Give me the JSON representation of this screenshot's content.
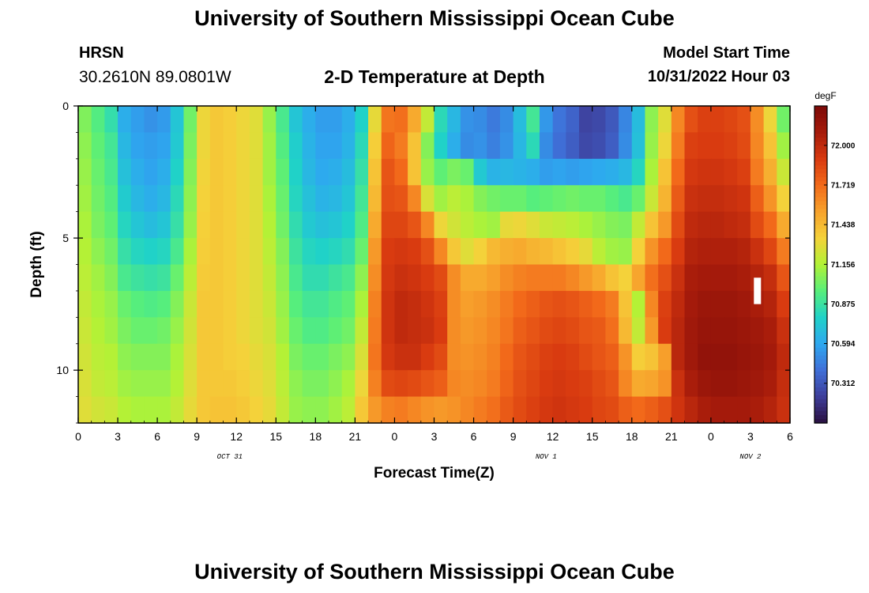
{
  "header": {
    "title": "University of Southern Mississippi Ocean Cube",
    "station": "HRSN",
    "coords": "30.2610N  89.0801W",
    "subtitle": "2-D Temperature at Depth",
    "start_label": "Model Start Time",
    "start_value": "10/31/2022 Hour 03"
  },
  "footer": {
    "title": "University of Southern Mississippi Ocean Cube"
  },
  "colors": {
    "ramp": [
      "#2a0f40",
      "#3e3e9a",
      "#3f6fd8",
      "#2ea8f0",
      "#20d2c8",
      "#58ef7a",
      "#b2f236",
      "#f5d23a",
      "#f7a22c",
      "#f26a1a",
      "#d83a10",
      "#a61b0b",
      "#7c0a08"
    ],
    "marker": "#ffffff"
  },
  "chart_data": {
    "type": "heatmap",
    "title": "2-D Temperature at Depth",
    "xlabel": "Forecast Time(Z)",
    "ylabel": "Depth (ft)",
    "x_hours": [
      0,
      54
    ],
    "x_tick_labels": [
      "0",
      "3",
      "6",
      "9",
      "12",
      "15",
      "18",
      "21",
      "0",
      "3",
      "6",
      "9",
      "12",
      "15",
      "18",
      "21",
      "0",
      "3",
      "6"
    ],
    "date_labels": [
      {
        "hour": 11.5,
        "text": "OCT 31"
      },
      {
        "hour": 35.5,
        "text": "NOV 1"
      },
      {
        "hour": 51,
        "text": "NOV 2"
      }
    ],
    "ylim": [
      0,
      12
    ],
    "y_tick_labels": [
      {
        "depth": 0,
        "label": "0"
      },
      {
        "depth": 5,
        "label": "5"
      },
      {
        "depth": 10,
        "label": "10"
      }
    ],
    "colorbar": {
      "unit": "degF",
      "min": 70.03,
      "max": 72.28,
      "ticks": [
        "72.000",
        "71.719",
        "71.438",
        "71.156",
        "70.875",
        "70.594",
        "70.312"
      ]
    },
    "depth_rows": [
      "0-1 ft",
      "1-2 ft",
      "2-3 ft",
      "3-4 ft",
      "4-5 ft",
      "5-6 ft",
      "6-7 ft",
      "7-8 ft",
      "8-9 ft",
      "9-10 ft",
      "10-11 ft",
      "11-12 ft"
    ],
    "hours": [
      0,
      1,
      2,
      3,
      4,
      5,
      6,
      7,
      8,
      9,
      10,
      11,
      12,
      13,
      14,
      15,
      16,
      17,
      18,
      19,
      20,
      21,
      22,
      23,
      24,
      25,
      26,
      27,
      28,
      29,
      30,
      31,
      32,
      33,
      34,
      35,
      36,
      37,
      38,
      39,
      40,
      41,
      42,
      43,
      44,
      45,
      46,
      47,
      48,
      49,
      50,
      51,
      52,
      53
    ],
    "temps_degF": [
      [
        71.05,
        70.95,
        70.85,
        70.62,
        70.56,
        70.52,
        70.55,
        70.72,
        71.02,
        71.32,
        71.38,
        71.36,
        71.32,
        71.28,
        71.1,
        70.92,
        70.72,
        70.62,
        70.56,
        70.56,
        70.62,
        70.78,
        71.3,
        71.68,
        71.7,
        71.5,
        71.2,
        70.82,
        70.66,
        70.52,
        70.5,
        70.44,
        70.5,
        70.68,
        70.9,
        70.54,
        70.42,
        70.36,
        70.24,
        70.26,
        70.32,
        70.48,
        70.68,
        71.08,
        71.28,
        71.62,
        71.82,
        71.88,
        71.88,
        71.86,
        71.82,
        71.6,
        71.32,
        71.02
      ],
      [
        71.08,
        70.98,
        70.9,
        70.66,
        70.58,
        70.56,
        70.58,
        70.74,
        71.04,
        71.32,
        71.38,
        71.36,
        71.32,
        71.28,
        71.12,
        70.95,
        70.76,
        70.64,
        70.58,
        70.58,
        70.64,
        70.82,
        71.36,
        71.74,
        71.66,
        71.4,
        71.06,
        70.78,
        70.62,
        70.5,
        70.52,
        70.46,
        70.52,
        70.66,
        70.82,
        70.5,
        70.4,
        70.34,
        70.26,
        70.28,
        70.34,
        70.5,
        70.7,
        71.1,
        71.32,
        71.66,
        71.88,
        71.9,
        71.9,
        71.88,
        71.84,
        71.62,
        71.4,
        71.12
      ],
      [
        71.1,
        71.0,
        70.92,
        70.7,
        70.62,
        70.58,
        70.62,
        70.78,
        71.06,
        71.33,
        71.38,
        71.36,
        71.32,
        71.28,
        71.12,
        70.98,
        70.78,
        70.66,
        70.6,
        70.62,
        70.68,
        70.86,
        71.4,
        71.8,
        71.72,
        71.4,
        71.1,
        70.98,
        71.04,
        71.0,
        70.74,
        70.64,
        70.66,
        70.64,
        70.62,
        70.56,
        70.58,
        70.56,
        70.58,
        70.6,
        70.62,
        70.66,
        70.8,
        71.14,
        71.4,
        71.72,
        71.92,
        71.94,
        71.94,
        71.92,
        71.88,
        71.66,
        71.48,
        71.22
      ],
      [
        71.12,
        71.02,
        70.95,
        70.75,
        70.66,
        70.62,
        70.66,
        70.82,
        71.08,
        71.34,
        71.38,
        71.36,
        71.32,
        71.28,
        71.14,
        71.0,
        70.8,
        70.7,
        70.64,
        70.66,
        70.72,
        70.9,
        71.44,
        71.82,
        71.8,
        71.62,
        71.26,
        71.12,
        71.18,
        71.14,
        71.06,
        71.02,
        71.0,
        71.0,
        70.96,
        70.98,
        71.0,
        71.02,
        71.0,
        71.0,
        70.96,
        70.92,
        71.0,
        71.22,
        71.46,
        71.78,
        71.96,
        71.98,
        71.98,
        71.96,
        71.94,
        71.76,
        71.58,
        71.34
      ],
      [
        71.14,
        71.04,
        70.98,
        70.8,
        70.72,
        70.68,
        70.72,
        70.86,
        71.1,
        71.35,
        71.38,
        71.36,
        71.32,
        71.28,
        71.16,
        71.02,
        70.84,
        70.74,
        70.7,
        70.72,
        70.78,
        70.94,
        71.5,
        71.86,
        71.86,
        71.8,
        71.62,
        71.32,
        71.24,
        71.18,
        71.14,
        71.12,
        71.3,
        71.32,
        71.28,
        71.22,
        71.2,
        71.18,
        71.14,
        71.1,
        71.06,
        71.04,
        71.2,
        71.4,
        71.56,
        71.84,
        72.0,
        72.02,
        72.02,
        72.0,
        71.98,
        71.84,
        71.72,
        71.5
      ],
      [
        71.16,
        71.08,
        71.02,
        70.86,
        70.8,
        70.78,
        70.8,
        70.92,
        71.14,
        71.36,
        71.38,
        71.36,
        71.32,
        71.28,
        71.18,
        71.06,
        70.88,
        70.8,
        70.78,
        70.8,
        70.84,
        71.0,
        71.56,
        71.9,
        71.92,
        71.9,
        71.82,
        71.62,
        71.38,
        71.28,
        71.34,
        71.44,
        71.48,
        71.5,
        71.46,
        71.44,
        71.4,
        71.36,
        71.3,
        71.18,
        71.12,
        71.1,
        71.34,
        71.58,
        71.72,
        71.9,
        72.04,
        72.06,
        72.06,
        72.06,
        72.04,
        71.96,
        71.86,
        71.66
      ],
      [
        71.18,
        71.12,
        71.06,
        70.92,
        70.88,
        70.86,
        70.88,
        71.0,
        71.18,
        71.37,
        71.38,
        71.36,
        71.32,
        71.28,
        71.2,
        71.08,
        70.92,
        70.84,
        70.84,
        70.88,
        70.92,
        71.08,
        71.6,
        71.92,
        71.96,
        71.94,
        71.9,
        71.84,
        71.6,
        71.5,
        71.5,
        71.54,
        71.6,
        71.64,
        71.66,
        71.66,
        71.66,
        71.62,
        71.56,
        71.5,
        71.4,
        71.34,
        71.52,
        71.7,
        71.82,
        71.96,
        72.08,
        72.1,
        72.1,
        72.1,
        72.08,
        72.04,
        71.98,
        71.8
      ],
      [
        71.2,
        71.14,
        71.1,
        71.0,
        70.96,
        70.94,
        70.96,
        71.06,
        71.22,
        71.38,
        71.38,
        71.36,
        71.32,
        71.28,
        71.22,
        71.1,
        70.96,
        70.9,
        70.9,
        70.94,
        70.98,
        71.14,
        71.64,
        71.94,
        72.0,
        71.98,
        71.94,
        71.88,
        71.6,
        71.54,
        71.56,
        71.6,
        71.66,
        71.72,
        71.76,
        71.8,
        71.82,
        71.8,
        71.76,
        71.72,
        71.66,
        71.4,
        71.16,
        71.62,
        71.88,
        72.0,
        72.1,
        72.14,
        72.14,
        72.14,
        72.12,
        72.08,
        72.04,
        71.9
      ],
      [
        71.22,
        71.16,
        71.12,
        71.04,
        71.0,
        71.0,
        71.02,
        71.1,
        71.24,
        71.38,
        71.38,
        71.36,
        71.32,
        71.28,
        71.24,
        71.12,
        71.0,
        70.94,
        70.94,
        70.98,
        71.02,
        71.2,
        71.66,
        71.94,
        72.0,
        71.98,
        71.96,
        71.9,
        71.6,
        71.56,
        71.58,
        71.62,
        71.68,
        71.76,
        71.8,
        71.84,
        71.86,
        71.84,
        71.8,
        71.78,
        71.7,
        71.44,
        71.2,
        71.56,
        71.9,
        72.02,
        72.12,
        72.16,
        72.16,
        72.16,
        72.14,
        72.12,
        72.08,
        71.96
      ],
      [
        71.24,
        71.18,
        71.16,
        71.08,
        71.06,
        71.06,
        71.06,
        71.14,
        71.26,
        71.38,
        71.38,
        71.36,
        71.34,
        71.3,
        71.26,
        71.16,
        71.04,
        71.0,
        71.0,
        71.04,
        71.08,
        71.26,
        71.68,
        71.92,
        71.96,
        71.96,
        71.9,
        71.84,
        71.6,
        71.58,
        71.6,
        71.64,
        71.72,
        71.8,
        71.84,
        71.88,
        71.9,
        71.88,
        71.84,
        71.8,
        71.76,
        71.58,
        71.36,
        71.4,
        71.54,
        72.02,
        72.12,
        72.18,
        72.18,
        72.18,
        72.16,
        72.14,
        72.1,
        72.0
      ],
      [
        71.26,
        71.2,
        71.18,
        71.12,
        71.1,
        71.1,
        71.1,
        71.16,
        71.28,
        71.38,
        71.38,
        71.38,
        71.36,
        71.32,
        71.28,
        71.18,
        71.08,
        71.04,
        71.04,
        71.08,
        71.14,
        71.32,
        71.64,
        71.84,
        71.86,
        71.84,
        71.8,
        71.76,
        71.62,
        71.6,
        71.62,
        71.66,
        71.74,
        71.82,
        71.86,
        71.9,
        71.92,
        71.9,
        71.88,
        71.84,
        71.8,
        71.62,
        71.5,
        71.52,
        71.58,
        71.96,
        72.08,
        72.14,
        72.16,
        72.16,
        72.14,
        72.12,
        72.08,
        71.98
      ],
      [
        71.28,
        71.24,
        71.22,
        71.16,
        71.14,
        71.14,
        71.14,
        71.2,
        71.3,
        71.38,
        71.4,
        71.4,
        71.38,
        71.34,
        71.3,
        71.2,
        71.1,
        71.08,
        71.08,
        71.12,
        71.18,
        71.38,
        71.56,
        71.64,
        71.66,
        71.62,
        71.58,
        71.56,
        71.58,
        71.62,
        71.66,
        71.7,
        71.78,
        71.84,
        71.88,
        71.92,
        71.94,
        71.92,
        71.9,
        71.86,
        71.84,
        71.76,
        71.72,
        71.76,
        71.82,
        71.94,
        72.02,
        72.08,
        72.1,
        72.1,
        72.1,
        72.08,
        72.04,
        71.96
      ]
    ],
    "marker": {
      "hour": 51.5,
      "depth_from": 6.5,
      "depth_to": 7.5
    }
  }
}
